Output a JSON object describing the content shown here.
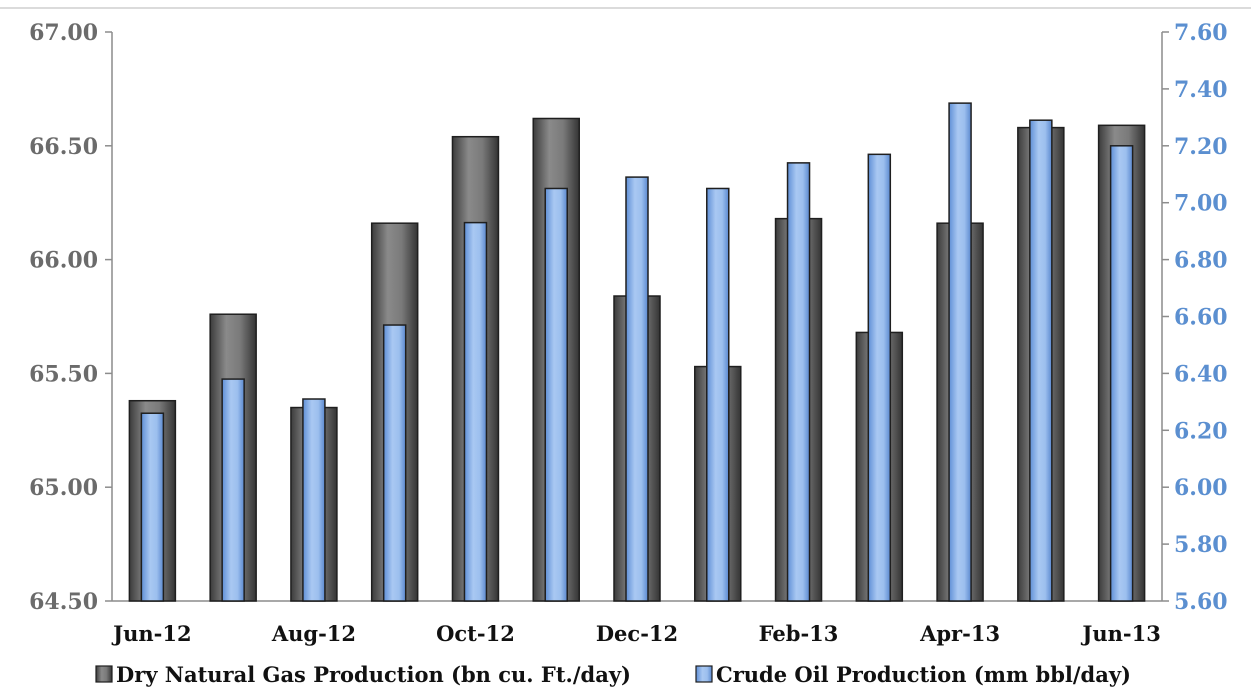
{
  "chart_data": {
    "type": "bar",
    "categories": [
      "Jun-12",
      "Jul-12",
      "Aug-12",
      "Sep-12",
      "Oct-12",
      "Nov-12",
      "Dec-12",
      "Jan-13",
      "Feb-13",
      "Mar-13",
      "Apr-13",
      "May-13",
      "Jun-13"
    ],
    "x_tick_labels": [
      "Jun-12",
      "",
      "Aug-12",
      "",
      "Oct-12",
      "",
      "Dec-12",
      "",
      "Feb-13",
      "",
      "Apr-13",
      "",
      "Jun-13"
    ],
    "series": [
      {
        "name": "Dry Natural Gas Production (bn cu. Ft./day)",
        "axis": "left",
        "color": "#595959",
        "values": [
          65.38,
          65.76,
          65.35,
          66.16,
          66.54,
          66.62,
          65.84,
          65.53,
          66.18,
          65.68,
          66.16,
          66.58,
          66.59
        ]
      },
      {
        "name": "Crude Oil Production (mm bbl/day)",
        "axis": "right",
        "color": "#8db4e8",
        "values": [
          6.26,
          6.38,
          6.31,
          6.57,
          6.93,
          7.05,
          7.09,
          7.05,
          7.14,
          7.17,
          7.35,
          7.29,
          7.2
        ]
      }
    ],
    "left_axis": {
      "ylim": [
        64.5,
        67.0
      ],
      "ticks": [
        "64.50",
        "65.00",
        "65.50",
        "66.00",
        "66.50",
        "67.00"
      ]
    },
    "right_axis": {
      "ylim": [
        5.6,
        7.6
      ],
      "ticks": [
        "5.60",
        "5.80",
        "6.00",
        "6.20",
        "6.40",
        "6.60",
        "6.80",
        "7.00",
        "7.20",
        "7.40",
        "7.60"
      ]
    },
    "colors": {
      "left_axis_text": "#6b6b6b",
      "right_axis_text": "#5b8fd0"
    },
    "grid": false,
    "legend_position": "bottom"
  }
}
